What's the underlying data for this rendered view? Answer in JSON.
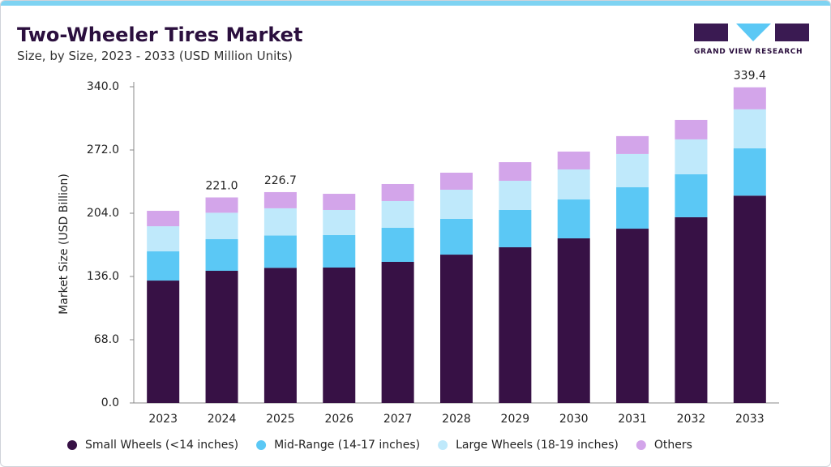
{
  "header": {
    "title": "Two-Wheeler Tires Market",
    "subtitle": "Size, by Size, 2023 - 2033 (USD Million Units)",
    "logo": "GRAND VIEW RESEARCH"
  },
  "chart_data": {
    "type": "stacked_bar",
    "y_label": "Market Size (USD Billion)",
    "categories": [
      "2023",
      "2024",
      "2025",
      "2026",
      "2027",
      "2028",
      "2029",
      "2030",
      "2031",
      "2032",
      "2033"
    ],
    "series": [
      {
        "name": "Small Wheels (<14 inches)",
        "color": "#371145",
        "values": [
          131.6,
          142.1,
          145.3,
          145.6,
          151.7,
          159.5,
          167.4,
          177.0,
          187.4,
          199.7,
          222.9
        ]
      },
      {
        "name": "Mid-Range (14-17 inches)",
        "color": "#5bc8f5",
        "values": [
          31.4,
          34.0,
          34.7,
          34.9,
          36.6,
          38.4,
          40.1,
          41.8,
          44.5,
          46.2,
          50.9
        ]
      },
      {
        "name": "Large Wheels (18-19 inches)",
        "color": "#bfe9fb",
        "values": [
          27.0,
          28.4,
          29.3,
          27.0,
          28.8,
          31.4,
          31.4,
          32.3,
          35.8,
          37.5,
          41.9
        ]
      },
      {
        "name": "Others",
        "color": "#d3a5ea",
        "values": [
          16.6,
          16.5,
          17.4,
          17.4,
          18.3,
          18.3,
          20.0,
          19.2,
          19.2,
          20.9,
          23.7
        ]
      }
    ],
    "totals": [
      null,
      221.0,
      226.7,
      null,
      null,
      null,
      null,
      null,
      null,
      null,
      339.4
    ],
    "total_value_labels": [
      null,
      "221.0",
      "226.7",
      null,
      null,
      null,
      null,
      null,
      null,
      null,
      "339.4"
    ],
    "ylim": [
      0,
      340
    ],
    "yticks": [
      {
        "value": 0,
        "label": "0.0"
      },
      {
        "value": 68,
        "label": "68.0"
      },
      {
        "value": 136,
        "label": "136.0"
      },
      {
        "value": 204,
        "label": "204.0"
      },
      {
        "value": 272,
        "label": "272.0"
      },
      {
        "value": 340,
        "label": "340.0"
      }
    ],
    "grid": false
  }
}
